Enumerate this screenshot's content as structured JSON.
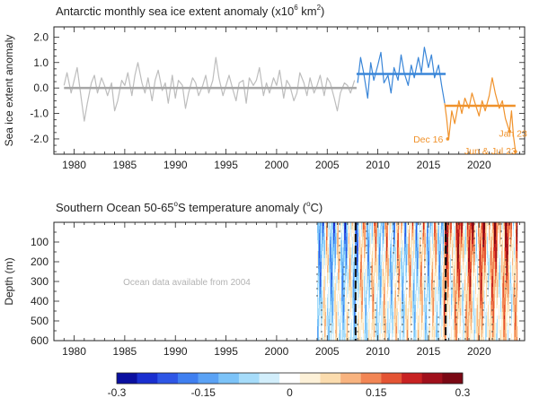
{
  "chart_data": [
    {
      "type": "line",
      "title": "Antarctic monthly sea ice extent anomaly (x10",
      "title_exp": "6",
      "title_unit": " km",
      "title_unit_exp": "2",
      "title_end": ")",
      "ylabel": "Sea ice extent anomaly",
      "xlim": [
        1978,
        2024.5
      ],
      "ylim": [
        -2.6,
        2.4
      ],
      "x_ticks": [
        1980,
        1985,
        1990,
        1995,
        2000,
        2005,
        2010,
        2015,
        2020
      ],
      "x_tick_labels": [
        "1980",
        "1985",
        "1990",
        "1995",
        "2000",
        "2005",
        "2010",
        "2015",
        "2020"
      ],
      "y_ticks": [
        2.0,
        1.0,
        0.0,
        -1.0,
        -2.0
      ],
      "y_tick_labels": [
        "2.0",
        "1.0",
        "0.0",
        "-1.0",
        "-2.0"
      ],
      "series": [
        {
          "color": "#bdbdbd",
          "x": [
            1979.0,
            1979.3,
            1979.7,
            1980.0,
            1980.3,
            1980.7,
            1981.0,
            1981.3,
            1981.7,
            1982.0,
            1982.3,
            1982.7,
            1983.0,
            1983.3,
            1983.7,
            1984.0,
            1984.3,
            1984.7,
            1985.0,
            1985.3,
            1985.7,
            1986.0,
            1986.3,
            1986.7,
            1987.0,
            1987.3,
            1987.7,
            1988.0,
            1988.3,
            1988.7,
            1989.0,
            1989.3,
            1989.7,
            1990.0,
            1990.3,
            1990.7,
            1991.0,
            1991.3,
            1991.7,
            1992.0,
            1992.3,
            1992.7,
            1993.0,
            1993.3,
            1993.7,
            1994.0,
            1994.3,
            1994.7,
            1995.0,
            1995.3,
            1995.7,
            1996.0,
            1996.3,
            1996.7,
            1997.0,
            1997.3,
            1997.7,
            1998.0,
            1998.3,
            1998.7,
            1999.0,
            1999.3,
            1999.7,
            2000.0,
            2000.3,
            2000.7,
            2001.0,
            2001.3,
            2001.7,
            2002.0,
            2002.3,
            2002.7,
            2003.0,
            2003.3,
            2003.7,
            2004.0,
            2004.3,
            2004.7,
            2005.0,
            2005.3,
            2005.7,
            2006.0,
            2006.3,
            2006.7,
            2007.0,
            2007.3,
            2007.7
          ],
          "y": [
            0.1,
            0.6,
            -0.2,
            0.3,
            0.8,
            -0.4,
            -1.3,
            -0.6,
            0.2,
            0.5,
            -0.2,
            0.4,
            0.1,
            -0.3,
            0.2,
            -0.9,
            -0.5,
            0.3,
            0.1,
            0.6,
            -0.3,
            0.5,
            1.0,
            0.2,
            -0.2,
            0.4,
            -0.5,
            0.3,
            0.7,
            -0.1,
            0.2,
            -0.6,
            0.5,
            -0.4,
            0.3,
            0.1,
            -0.8,
            -0.2,
            0.4,
            0.2,
            -0.3,
            0.1,
            0.5,
            -0.2,
            0.3,
            1.2,
            0.4,
            -0.3,
            0.1,
            0.5,
            -0.1,
            -0.5,
            0.2,
            0.3,
            -0.6,
            0.4,
            0.1,
            0.3,
            0.8,
            -0.3,
            0.2,
            -0.2,
            0.4,
            0.1,
            0.7,
            -0.4,
            0.3,
            0.1,
            -0.5,
            -0.2,
            0.6,
            0.2,
            -0.3,
            0.4,
            -0.2,
            0.1,
            0.5,
            -0.3,
            0.4,
            0.2,
            -0.4,
            -0.9,
            -0.2,
            0.2,
            0.1,
            -0.2,
            0.3
          ]
        },
        {
          "color": "#3a86d8",
          "x": [
            2008.0,
            2008.3,
            2008.6,
            2009.0,
            2009.3,
            2009.6,
            2010.0,
            2010.3,
            2010.6,
            2011.0,
            2011.3,
            2011.6,
            2012.0,
            2012.3,
            2012.6,
            2013.0,
            2013.3,
            2013.6,
            2014.0,
            2014.3,
            2014.6,
            2015.0,
            2015.3,
            2015.6,
            2016.0,
            2016.3,
            2016.6
          ],
          "y": [
            0.2,
            1.2,
            0.6,
            -0.4,
            1.0,
            0.3,
            0.9,
            1.4,
            0.2,
            0.5,
            -0.2,
            0.8,
            0.3,
            1.3,
            0.6,
            0.1,
            0.9,
            0.4,
            1.2,
            0.6,
            1.6,
            0.8,
            1.3,
            0.4,
            0.9,
            0.1,
            -0.6
          ]
        },
        {
          "color": "#f0922b",
          "x": [
            2016.6,
            2016.8,
            2017.0,
            2017.3,
            2017.6,
            2018.0,
            2018.3,
            2018.6,
            2019.0,
            2019.3,
            2019.6,
            2020.0,
            2020.3,
            2020.6,
            2021.0,
            2021.3,
            2021.6,
            2022.0,
            2022.3,
            2022.6,
            2023.0,
            2023.2,
            2023.4,
            2023.6
          ],
          "y": [
            -0.6,
            -1.2,
            -2.0,
            -0.9,
            -1.4,
            -0.5,
            -1.0,
            -0.4,
            -0.8,
            -0.2,
            -0.6,
            -1.1,
            -0.5,
            -0.9,
            -0.3,
            0.4,
            -0.2,
            -0.8,
            -0.5,
            -1.2,
            -1.7,
            -0.9,
            -1.9,
            -2.5
          ]
        }
      ],
      "mean_lines": [
        {
          "x": [
            1979,
            2007.9
          ],
          "y": 0.0,
          "color": "#a6a6a6"
        },
        {
          "x": [
            2007.9,
            2016.7
          ],
          "y": 0.55,
          "color": "#3a86d8"
        },
        {
          "x": [
            2016.7,
            2023.6
          ],
          "y": -0.7,
          "color": "#f0922b"
        }
      ],
      "annotations": [
        {
          "text": "Dec 16",
          "x": 2016.9,
          "y": -2.0,
          "color": "#f0922b"
        },
        {
          "text": "Jan 23",
          "x": 2023.0,
          "y": -1.7,
          "color": "#f0922b"
        },
        {
          "text": "Jun & Jul 23",
          "x": 2023.6,
          "y": -2.5,
          "color": "#f0922b"
        }
      ]
    },
    {
      "type": "heatmap",
      "title": "Southern Ocean 50-65",
      "title_sup": "o",
      "title_mid": "S temperature anomaly (",
      "title_sup2": "o",
      "title_end": "C)",
      "ylabel": "Depth (m)",
      "xlim": [
        1978,
        2024.5
      ],
      "ylim": [
        600,
        0
      ],
      "x_ticks": [
        1980,
        1985,
        1990,
        1995,
        2000,
        2005,
        2010,
        2015,
        2020
      ],
      "x_tick_labels": [
        "1980",
        "1985",
        "1990",
        "1995",
        "2000",
        "2005",
        "2010",
        "2015",
        "2020"
      ],
      "y_ticks": [
        100,
        200,
        300,
        400,
        500,
        600
      ],
      "y_tick_labels": [
        "100",
        "200",
        "300",
        "400",
        "500",
        "600"
      ],
      "data_start_year": 2004,
      "data_end_year": 2023.8,
      "dashed_lines_x": [
        2007.8,
        2016.7
      ],
      "note": "Ocean data available from 2004",
      "colorbar": {
        "colors": [
          "#0a0fa0",
          "#1a2fd0",
          "#2e56e6",
          "#3f7ff0",
          "#5aa2f5",
          "#7cc3f8",
          "#a6dcfa",
          "#d2eefb",
          "#ffffff",
          "#fdf1d8",
          "#fbdcae",
          "#f8b37f",
          "#f28655",
          "#e45434",
          "#c82222",
          "#a0101c",
          "#7a0814"
        ],
        "tick_values": [
          -0.3,
          -0.15,
          0,
          0.15,
          0.3
        ],
        "tick_labels": [
          "-0.3",
          "-0.15",
          "0",
          "0.15",
          "0.3"
        ]
      }
    }
  ]
}
